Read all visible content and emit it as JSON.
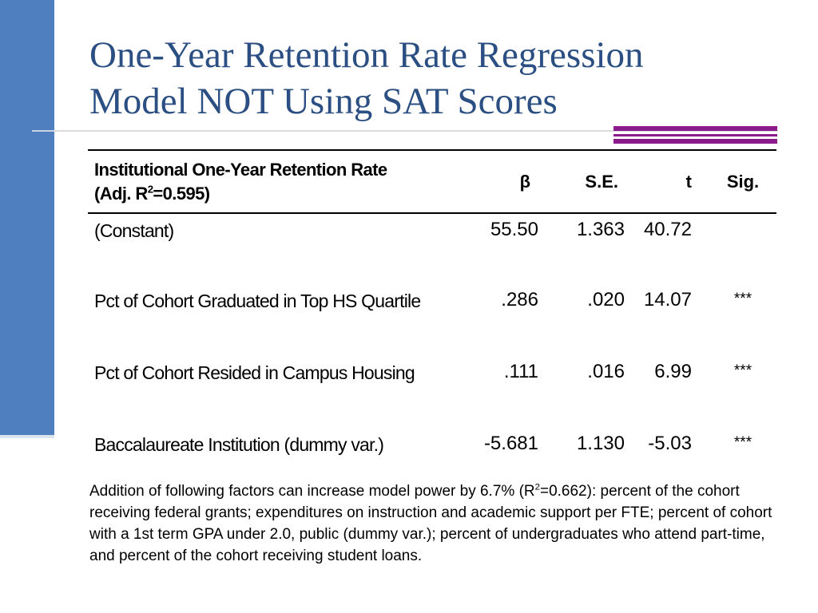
{
  "slide": {
    "title_line1": "One-Year Retention Rate Regression",
    "title_line2": "Model NOT Using SAT Scores"
  },
  "table": {
    "header": {
      "label_line1": "Institutional One-Year Retention Rate",
      "label_line2_prefix": "(Adj. R",
      "label_line2_sup": "2",
      "label_line2_suffix": "=0.595)",
      "beta": "β",
      "se": "S.E.",
      "t": "t",
      "sig": "Sig."
    },
    "rows": [
      {
        "label": "(Constant)",
        "beta": "55.50",
        "se": "1.363",
        "t": "40.72",
        "sig": ""
      },
      {
        "label": "Pct of Cohort Graduated in Top HS Quartile",
        "beta": ".286",
        "se": ".020",
        "t": "14.07",
        "sig": "***"
      },
      {
        "label": "Pct of Cohort Resided in Campus Housing",
        "beta": ".111",
        "se": ".016",
        "t": "6.99",
        "sig": "***"
      },
      {
        "label": "Baccalaureate Institution (dummy var.)",
        "beta": "-5.681",
        "se": "1.130",
        "t": "-5.03",
        "sig": "***"
      }
    ]
  },
  "note": {
    "prefix": "Addition of following factors can increase model power by 6.7% (R",
    "sup": "2",
    "suffix": "=0.662): percent of the cohort receiving federal grants; expenditures on instruction and academic support per FTE; percent of cohort with a 1st term GPA under 2.0, public (dummy var.); percent of undergraduates who attend part-time, and percent of the cohort receiving student loans."
  },
  "colors": {
    "left_bar": "#4f7fbf",
    "title": "#2b4f82",
    "accent": "#8b1a8b"
  }
}
